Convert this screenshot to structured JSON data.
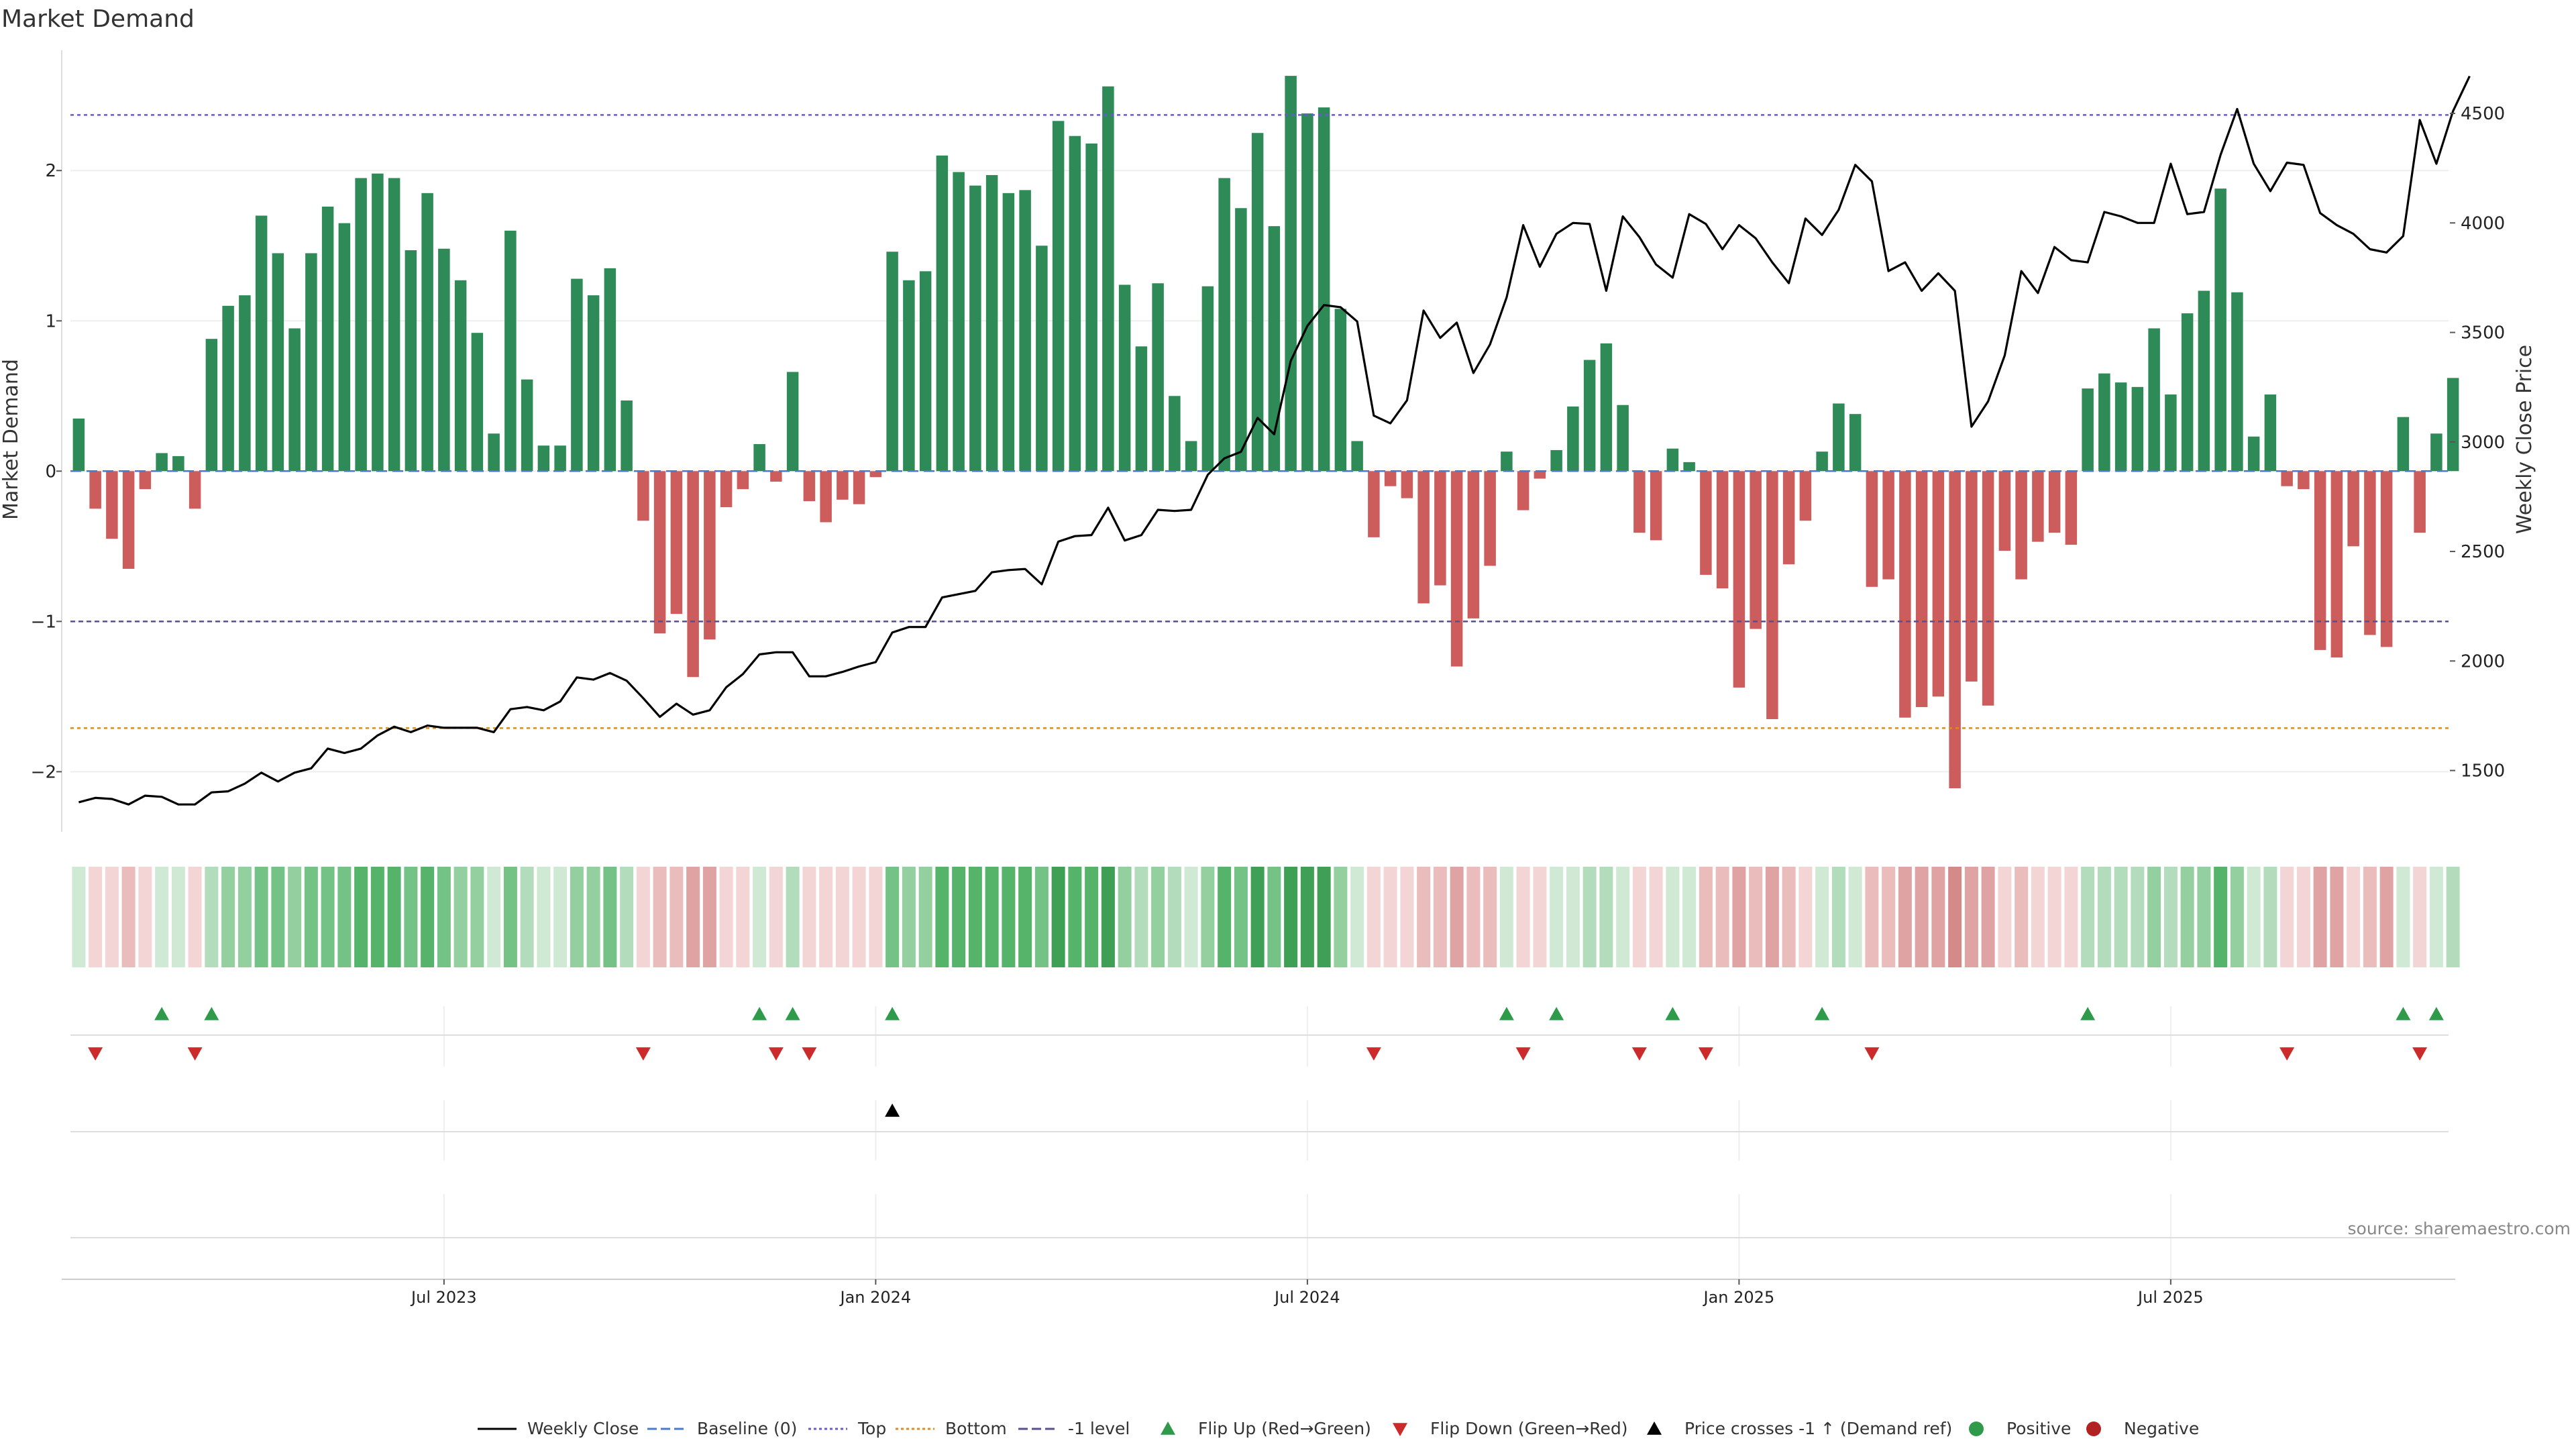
{
  "chart_data": {
    "type": "bar+line",
    "title": "Market Demand",
    "ylabel_left": "Market Demand",
    "ylabel_right": "Weekly Close Price",
    "source": "source: sharemaestro.com",
    "left_ylim": [
      -2.4,
      2.8
    ],
    "right_ylim": [
      1220,
      4788
    ],
    "left_ticks": [
      -2,
      -1,
      0,
      1,
      2
    ],
    "left_tick_labels": [
      "−2",
      "−1",
      "0",
      "1",
      "2"
    ],
    "right_ticks": [
      1500,
      2000,
      2500,
      3000,
      3500,
      4000,
      4500
    ],
    "right_tick_labels": [
      "1500",
      "2000",
      "2500",
      "3000",
      "3500",
      "4000",
      "4500"
    ],
    "reference_lines": {
      "top": 2.37,
      "bottom": -1.71,
      "minus_one": -1.0,
      "baseline": 0
    },
    "x_tick_labels": [
      "Jul 2023",
      "Jan 2024",
      "Jul 2024",
      "Jan 2025",
      "Jul 2025"
    ],
    "x_tick_weeks": [
      22,
      48,
      74,
      100,
      126
    ],
    "demand": [
      0.35,
      -0.25,
      -0.45,
      -0.65,
      -0.12,
      0.12,
      0.1,
      -0.25,
      0.88,
      1.1,
      1.17,
      1.7,
      1.45,
      0.95,
      1.45,
      1.76,
      1.65,
      1.95,
      1.98,
      1.95,
      1.47,
      1.85,
      1.48,
      1.27,
      0.92,
      0.25,
      1.6,
      0.61,
      0.17,
      0.17,
      1.28,
      1.17,
      1.35,
      0.47,
      -0.33,
      -1.08,
      -0.95,
      -1.37,
      -1.12,
      -0.24,
      -0.12,
      0.18,
      -0.07,
      0.66,
      -0.2,
      -0.34,
      -0.19,
      -0.22,
      -0.04,
      1.46,
      1.27,
      1.33,
      2.1,
      1.99,
      1.9,
      1.97,
      1.85,
      1.87,
      1.5,
      2.33,
      2.23,
      2.18,
      2.56,
      1.24,
      0.83,
      1.25,
      0.5,
      0.2,
      1.23,
      1.95,
      1.75,
      2.25,
      1.63,
      2.63,
      2.38,
      2.42,
      1.08,
      0.2,
      -0.44,
      -0.1,
      -0.18,
      -0.88,
      -0.76,
      -1.3,
      -0.98,
      -0.63,
      0.13,
      -0.26,
      -0.05,
      0.14,
      0.43,
      0.74,
      0.85,
      0.44,
      -0.41,
      -0.46,
      0.15,
      0.06,
      -0.69,
      -0.78,
      -1.44,
      -1.05,
      -1.65,
      -0.62,
      -0.33,
      0.13,
      0.45,
      0.38,
      -0.77,
      -0.72,
      -1.64,
      -1.57,
      -1.5,
      -2.11,
      -1.4,
      -1.56,
      -0.53,
      -0.72,
      -0.47,
      -0.41,
      -0.49,
      0.55,
      0.65,
      0.59,
      0.56,
      0.95,
      0.51,
      1.05,
      1.2,
      1.88,
      1.19,
      0.23,
      0.51,
      -0.1,
      -0.12,
      -1.19,
      -1.24,
      -0.5,
      -1.09,
      -1.17,
      0.36,
      -0.41,
      0.25,
      0.62
    ],
    "weekly_close": [
      1355,
      1375,
      1370,
      1345,
      1385,
      1380,
      1345,
      1345,
      1400,
      1405,
      1440,
      1490,
      1450,
      1490,
      1510,
      1600,
      1580,
      1600,
      1660,
      1700,
      1675,
      1705,
      1695,
      1695,
      1695,
      1675,
      1780,
      1790,
      1775,
      1815,
      1925,
      1915,
      1945,
      1910,
      1830,
      1745,
      1805,
      1755,
      1775,
      1880,
      1940,
      2030,
      2040,
      2040,
      1930,
      1930,
      1950,
      1975,
      1995,
      2130,
      2155,
      2155,
      2290,
      2305,
      2320,
      2405,
      2415,
      2420,
      2350,
      2545,
      2570,
      2575,
      2700,
      2550,
      2575,
      2690,
      2685,
      2690,
      2850,
      2925,
      2955,
      3110,
      3035,
      3370,
      3530,
      3625,
      3615,
      3550,
      3120,
      3085,
      3190,
      3600,
      3475,
      3545,
      3315,
      3445,
      3660,
      3990,
      3800,
      3950,
      4000,
      3995,
      3690,
      4030,
      3935,
      3810,
      3750,
      4040,
      3995,
      3880,
      3990,
      3930,
      3820,
      3725,
      4020,
      3945,
      4060,
      4265,
      4190,
      3780,
      3820,
      3690,
      3770,
      3690,
      3070,
      3185,
      3395,
      3780,
      3680,
      3890,
      3830,
      3820,
      4050,
      4030,
      4000,
      4000,
      4270,
      4040,
      4050,
      4310,
      4520,
      4270,
      4145,
      4275,
      4265,
      4045,
      3990,
      3950,
      3880,
      3865,
      3940,
      4470,
      4270,
      4510,
      4670
    ],
    "color_strip_palette": {
      "neg": [
        "#f3d5d5",
        "#ebbcbc",
        "#e0a3a3",
        "#d58a8a"
      ],
      "pos": [
        "#cfe9d4",
        "#b2dcbb",
        "#93cf9f",
        "#74c285",
        "#55b46a",
        "#3f9f54"
      ]
    },
    "flip_up_weeks": [
      5,
      8,
      41,
      43,
      49,
      86,
      89,
      96,
      105,
      121,
      140,
      142
    ],
    "flip_down_weeks": [
      1,
      7,
      34,
      42,
      44,
      78,
      87,
      94,
      98,
      108,
      133,
      141
    ],
    "price_cross_weeks": [
      49
    ],
    "legend": [
      {
        "label": "Weekly Close",
        "marker": "line-solid",
        "color": "#000000"
      },
      {
        "label": "Baseline (0)",
        "marker": "line-dashed",
        "color": "#4a7bc8"
      },
      {
        "label": "Top",
        "marker": "line-dotted",
        "color": "#6a5acd"
      },
      {
        "label": "Bottom",
        "marker": "line-dotted",
        "color": "#e08a1e"
      },
      {
        "label": "-1 level",
        "marker": "line-dashed",
        "color": "#5b4e8c"
      },
      {
        "label": "Flip Up (Red→Green)",
        "marker": "triangle-up",
        "color": "#2e9a4a"
      },
      {
        "label": "Flip Down (Green→Red)",
        "marker": "triangle-down",
        "color": "#cc2b2b"
      },
      {
        "label": "Price crosses -1 ↑ (Demand ref)",
        "marker": "triangle-up",
        "color": "#000000"
      },
      {
        "label": "Positive",
        "marker": "circle",
        "color": "#2e9a4a"
      },
      {
        "label": "Negative",
        "marker": "circle",
        "color": "#b22222"
      }
    ],
    "colors": {
      "positive_bar": "#2e8b57",
      "negative_bar": "#cd5c5c",
      "price_line": "#000000",
      "flip_up": "#2e9a4a",
      "flip_down": "#cc2b2b"
    }
  }
}
